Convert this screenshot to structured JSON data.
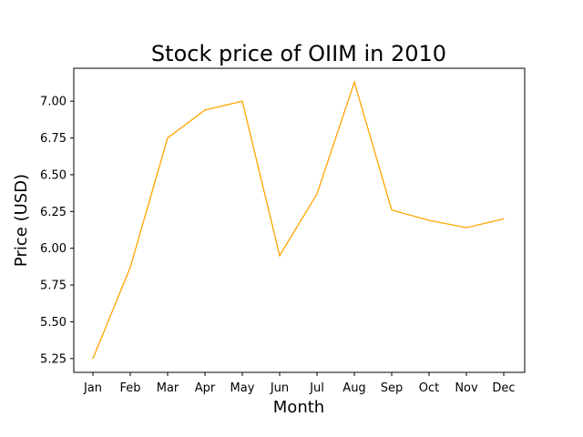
{
  "chart_data": {
    "type": "line",
    "title": "Stock price of OIIM in 2010",
    "xlabel": "Month",
    "ylabel": "Price (USD)",
    "categories": [
      "Jan",
      "Feb",
      "Mar",
      "Apr",
      "May",
      "Jun",
      "Jul",
      "Aug",
      "Sep",
      "Oct",
      "Nov",
      "Dec"
    ],
    "series": [
      {
        "values": [
          5.25,
          5.87,
          6.75,
          6.94,
          7.0,
          5.95,
          6.37,
          7.13,
          6.26,
          6.19,
          6.14,
          6.2
        ],
        "color": "#ffa500"
      }
    ],
    "yticks": [
      "5.25",
      "5.50",
      "5.75",
      "6.00",
      "6.25",
      "6.50",
      "6.75",
      "7.00"
    ],
    "ylim": [
      5.156,
      7.224
    ],
    "grid": false,
    "legend": "none"
  }
}
